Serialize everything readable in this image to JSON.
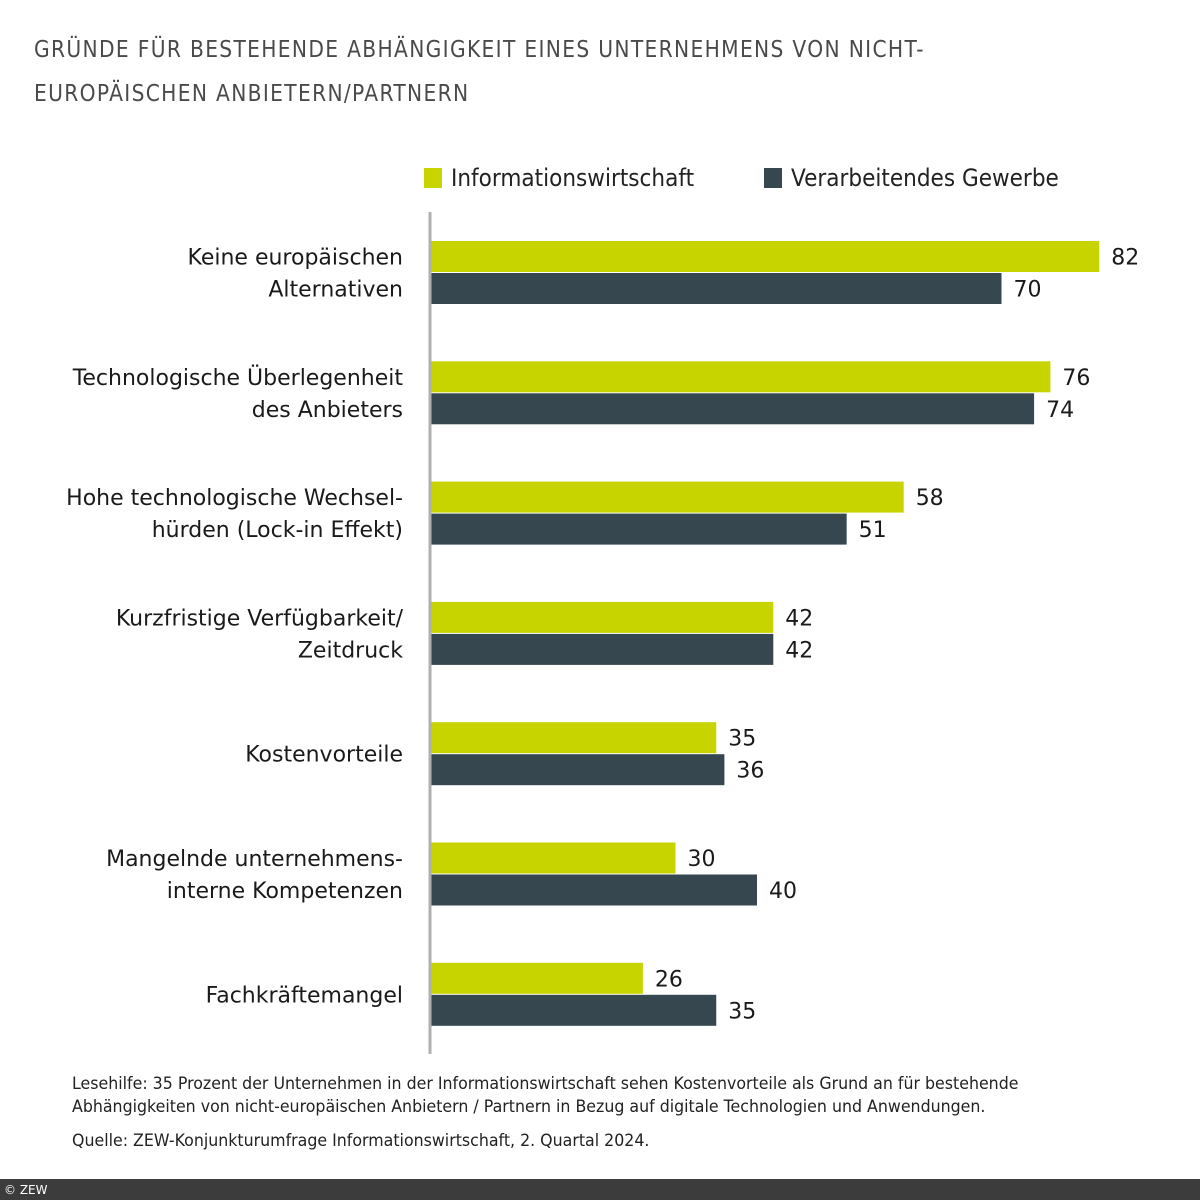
{
  "chart_data": {
    "type": "bar",
    "orientation": "horizontal",
    "title": "GRÜNDE FÜR BESTEHENDE ABHÄNGIGKEIT EINES UNTERNEHMENS VON NICHT-EUROPÄISCHEN ANBIETERN/PARTNERN",
    "title_lines": [
      "GRÜNDE FÜR BESTEHENDE ABHÄNGIGKEIT EINES UNTERNEHMENS VON NICHT-",
      "EUROPÄISCHEN ANBIETERN/PARTNERN"
    ],
    "categories": [
      [
        "Keine europäischen",
        "Alternativen"
      ],
      [
        "Technologische Überlegenheit",
        "des Anbieters"
      ],
      [
        "Hohe technologische Wechsel-",
        "hürden (Lock-in Effekt)"
      ],
      [
        "Kurzfristige Verfügbarkeit/",
        "Zeitdruck"
      ],
      [
        "Kostenvorteile"
      ],
      [
        "Mangelnde unternehmens-",
        "interne Kompetenzen"
      ],
      [
        "Fachkräftemangel"
      ]
    ],
    "series": [
      {
        "name": "Informationswirtschaft",
        "color": "#c8d400",
        "values": [
          82,
          76,
          58,
          42,
          35,
          30,
          26
        ]
      },
      {
        "name": "Verarbeitendes Gewerbe",
        "color": "#37474f",
        "values": [
          70,
          74,
          51,
          42,
          36,
          40,
          35
        ]
      }
    ],
    "xlabel": "",
    "ylabel": "",
    "xlim": [
      0,
      100
    ],
    "unit": "Prozent",
    "grid": false,
    "legend_position": "top"
  },
  "legend": {
    "items": [
      {
        "label": "Informationswirtschaft",
        "color": "#c8d400"
      },
      {
        "label": "Verarbeitendes Gewerbe",
        "color": "#37474f"
      }
    ]
  },
  "note": "Lesehilfe: 35 Prozent der Unternehmen in der Informationswirtschaft sehen Kostenvorteile als Grund an für bestehende Abhängigkeiten von nicht-europäischen Anbietern / Partnern in Bezug auf digitale Technologien und Anwendungen.",
  "source": "Quelle: ZEW-Konjunkturumfrage Informationswirtschaft, 2. Quartal 2024.",
  "footer": {
    "copyright": "© ZEW"
  },
  "colors": {
    "axis": "#b0b0b0",
    "footer_bg": "#3c3c3c",
    "title": "#4a4a4a"
  }
}
